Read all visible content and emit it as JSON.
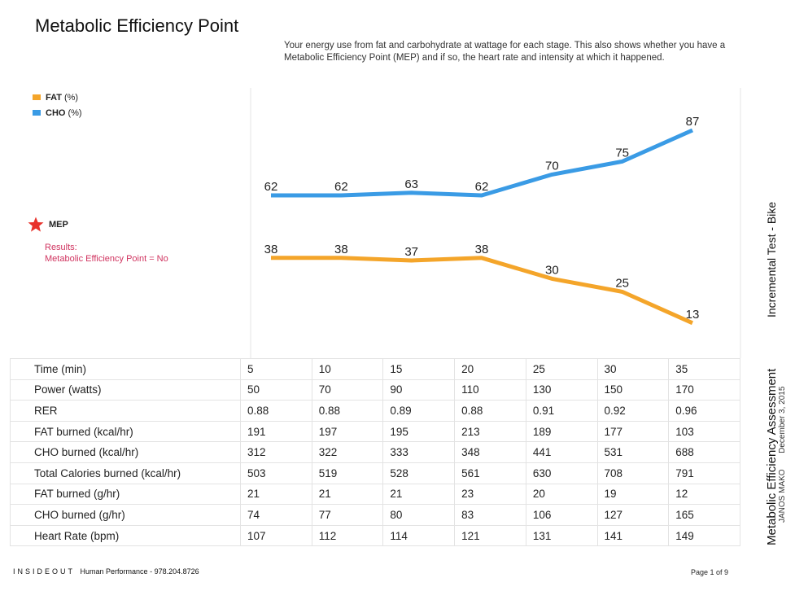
{
  "header": {
    "title": "Metabolic Efficiency Point",
    "subtitle": "Your energy use from fat and carbohydrate at wattage for each stage. This also shows whether you have a Metabolic Efficiency Point (MEP) and if so, the heart rate and intensity at which it happened."
  },
  "mep": {
    "label": "MEP",
    "results_line1": "Results:",
    "results_line2": "Metabolic Efficiency Point = No",
    "icon": "star-icon",
    "color": "#e8322c"
  },
  "chart_data": {
    "type": "line",
    "x": [
      5,
      10,
      15,
      20,
      25,
      30,
      35
    ],
    "series": [
      {
        "name": "CHO",
        "unit": "(%)",
        "color": "#3a9be5",
        "values": [
          62,
          62,
          63,
          62,
          70,
          75,
          87
        ]
      },
      {
        "name": "FAT",
        "unit": "(%)",
        "color": "#f4a52a",
        "values": [
          38,
          38,
          37,
          38,
          30,
          25,
          13
        ]
      }
    ],
    "legend": [
      {
        "name": "FAT",
        "unit": "(%)",
        "color": "#f4a52a"
      },
      {
        "name": "CHO",
        "unit": "(%)",
        "color": "#3a9be5"
      }
    ],
    "legend_position": "top-left",
    "grid": false
  },
  "table": {
    "rows": [
      {
        "label": "Time (min)",
        "values": [
          "5",
          "10",
          "15",
          "20",
          "25",
          "30",
          "35"
        ]
      },
      {
        "label": "Power (watts)",
        "values": [
          "50",
          "70",
          "90",
          "110",
          "130",
          "150",
          "170"
        ]
      },
      {
        "label": "RER",
        "values": [
          "0.88",
          "0.88",
          "0.89",
          "0.88",
          "0.91",
          "0.92",
          "0.96"
        ]
      },
      {
        "label": "FAT burned (kcal/hr)",
        "values": [
          "191",
          "197",
          "195",
          "213",
          "189",
          "177",
          "103"
        ]
      },
      {
        "label": "CHO burned (kcal/hr)",
        "values": [
          "312",
          "322",
          "333",
          "348",
          "441",
          "531",
          "688"
        ]
      },
      {
        "label": "Total Calories burned (kcal/hr)",
        "values": [
          "503",
          "519",
          "528",
          "561",
          "630",
          "708",
          "791"
        ]
      },
      {
        "label": "FAT burned (g/hr)",
        "values": [
          "21",
          "21",
          "21",
          "23",
          "20",
          "19",
          "12"
        ]
      },
      {
        "label": "CHO burned (g/hr)",
        "values": [
          "74",
          "77",
          "80",
          "83",
          "106",
          "127",
          "165"
        ]
      },
      {
        "label": "Heart Rate (bpm)",
        "values": [
          "107",
          "112",
          "114",
          "121",
          "131",
          "141",
          "149"
        ]
      }
    ]
  },
  "sidebar": {
    "title": "Metabolic Efficiency Assessment",
    "name": "JANOS MAKO",
    "date": "December 3, 2015",
    "test_type": "Incremental Test - Bike"
  },
  "footer": {
    "brand": "INSIDEOUT",
    "company": "Human Performance - 978.204.8726",
    "page": "Page 1 of 9"
  }
}
